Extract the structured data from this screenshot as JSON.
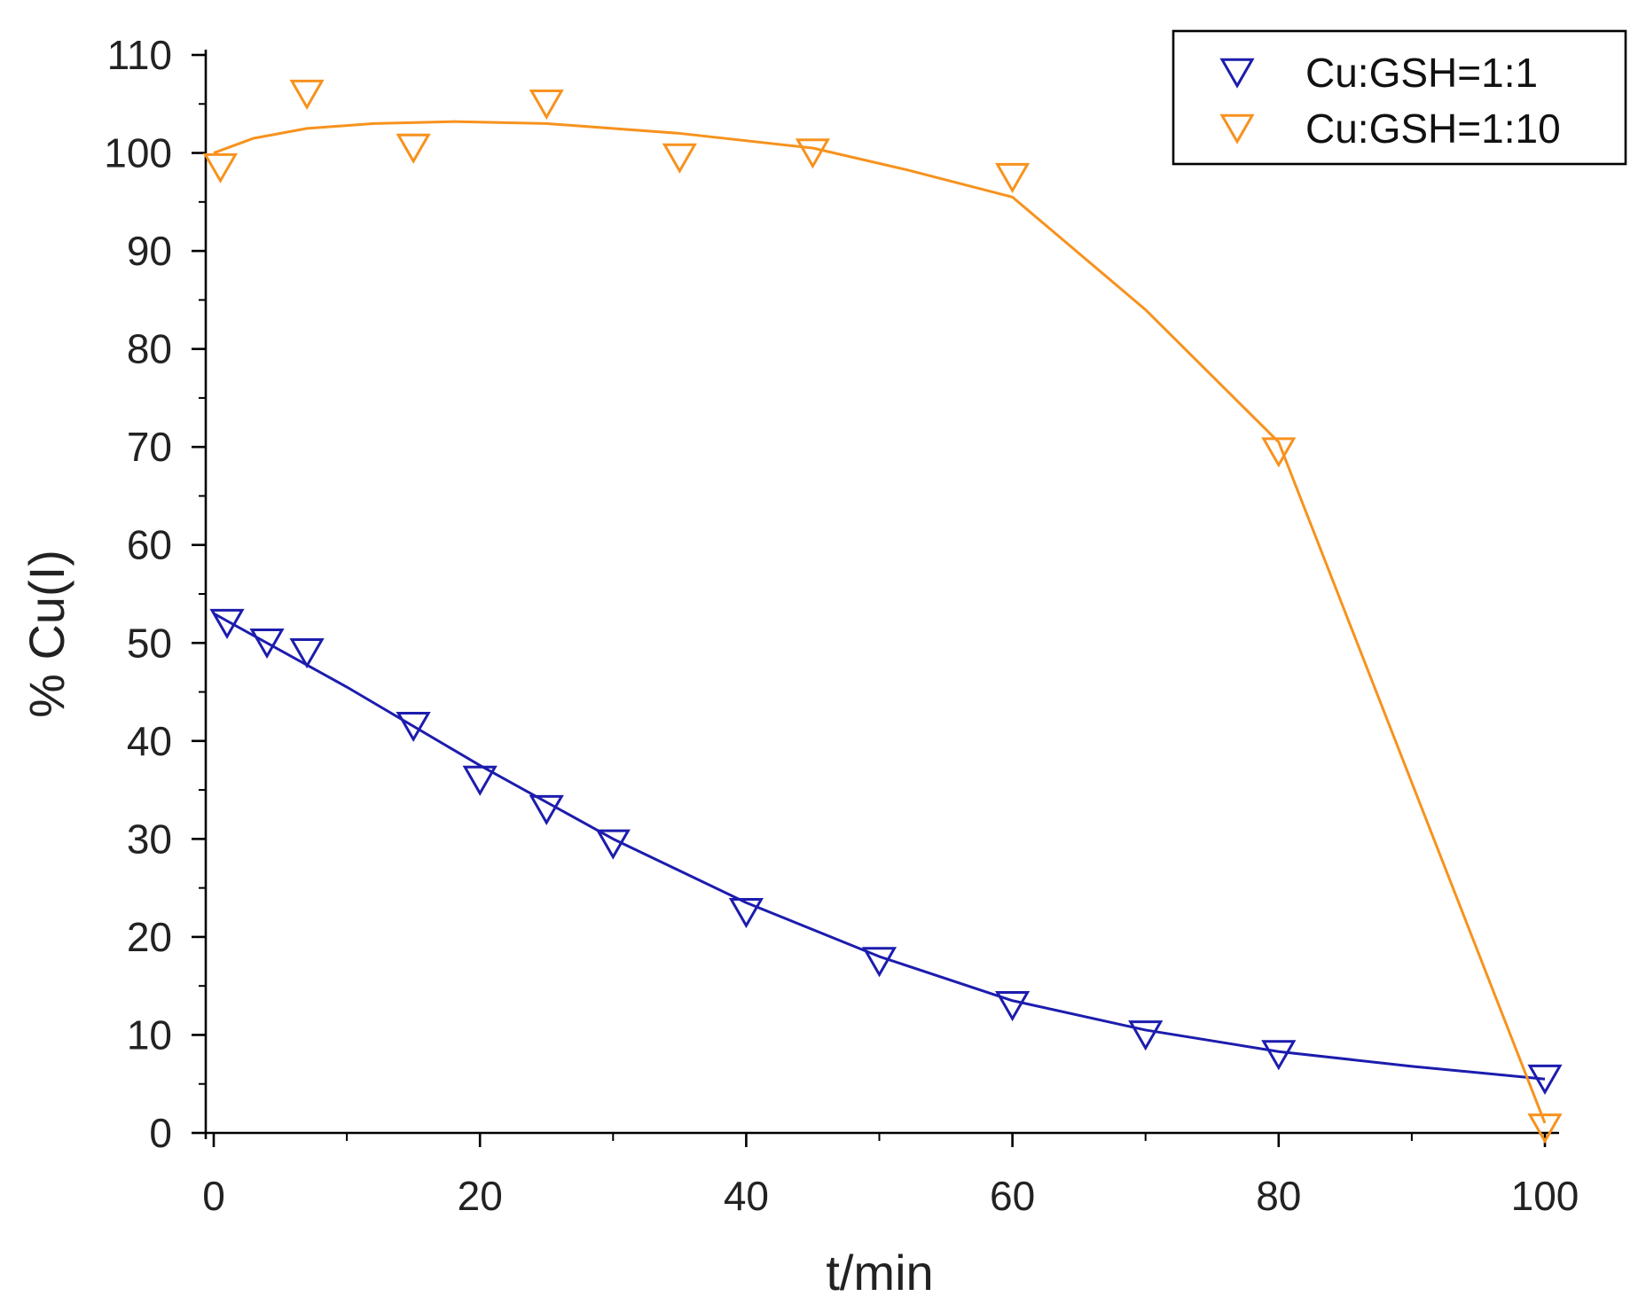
{
  "chart_data": {
    "type": "scatter",
    "title": "",
    "xlabel": "t/min",
    "ylabel": "% Cu(I)",
    "xlim": [
      0,
      100
    ],
    "ylim": [
      0,
      110
    ],
    "x_ticks": [
      0,
      20,
      40,
      60,
      80,
      100
    ],
    "x_tick_labels": [
      "0",
      "20",
      "40",
      "60",
      "80",
      "100"
    ],
    "y_ticks": [
      0,
      10,
      20,
      30,
      40,
      50,
      60,
      70,
      80,
      90,
      100,
      110
    ],
    "y_tick_labels": [
      "0",
      "10",
      "20",
      "30",
      "40",
      "50",
      "60",
      "70",
      "80",
      "90",
      "100",
      "110"
    ],
    "grid": false,
    "legend_position": "top-right",
    "marker": "open-down-triangle",
    "series": [
      {
        "name": "Cu:GSH=1:1",
        "color": "#1c1cae",
        "x": [
          1,
          4,
          7,
          15,
          20,
          25,
          30,
          40,
          50,
          60,
          70,
          80,
          100
        ],
        "y": [
          52,
          50,
          49,
          41.5,
          36,
          33,
          29.5,
          22.5,
          17.5,
          13,
          10,
          8,
          5.5
        ],
        "fit": {
          "x": [
            0,
            10,
            20,
            30,
            40,
            50,
            60,
            70,
            80,
            90,
            100
          ],
          "y": [
            53,
            45.5,
            37.5,
            30,
            23.5,
            18,
            13.5,
            10.5,
            8.3,
            6.8,
            5.5
          ]
        }
      },
      {
        "name": "Cu:GSH=1:10",
        "color": "#f7921e",
        "x": [
          0.5,
          7,
          15,
          25,
          35,
          45,
          60,
          80,
          100
        ],
        "y": [
          98.5,
          106,
          100.5,
          105,
          99.5,
          100,
          97.5,
          69.5,
          0.5
        ],
        "fit": {
          "x": [
            0,
            3,
            7,
            12,
            18,
            25,
            35,
            45,
            52,
            60,
            70,
            80,
            100
          ],
          "y": [
            100,
            101.5,
            102.5,
            103,
            103.2,
            103,
            102,
            100.5,
            98.3,
            95.5,
            84,
            70.5,
            1
          ]
        }
      }
    ]
  }
}
